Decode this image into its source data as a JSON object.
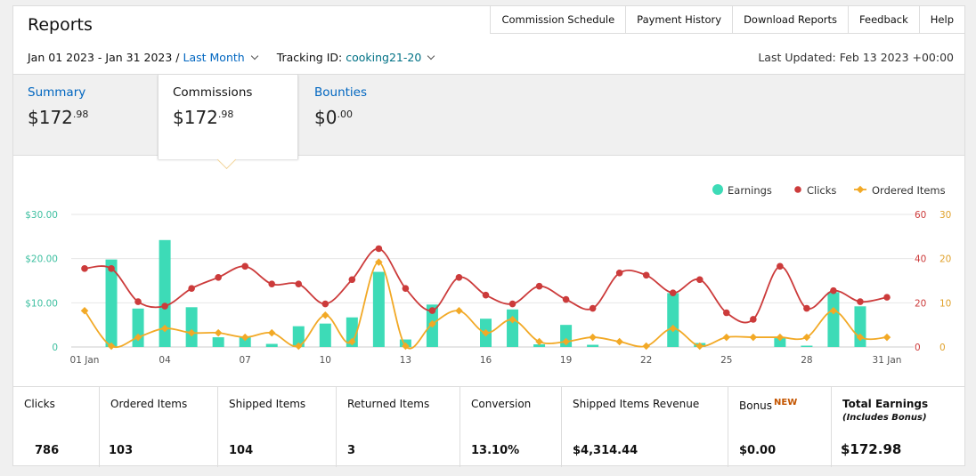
{
  "header": {
    "title": "Reports",
    "links": [
      "Commission Schedule",
      "Payment History",
      "Download Reports",
      "Feedback",
      "Help"
    ],
    "date_range": "Jan 01 2023 - Jan 31 2023 /",
    "date_preset": "Last Month",
    "tracking_label": "Tracking ID:",
    "tracking_id": "cooking21-20",
    "last_updated": "Last Updated: Feb 13 2023 +00:00"
  },
  "tabs": [
    {
      "name": "Summary",
      "amount_main": "$172",
      "amount_cents": ".98"
    },
    {
      "name": "Commissions",
      "amount_main": "$172",
      "amount_cents": ".98"
    },
    {
      "name": "Bounties",
      "amount_main": "$0",
      "amount_cents": ".00"
    }
  ],
  "chart_data": {
    "type": "bar+line",
    "x": [
      "01 Jan",
      "02",
      "03",
      "04",
      "05",
      "06",
      "07",
      "08",
      "09",
      "10",
      "11",
      "12",
      "13",
      "14",
      "15",
      "16",
      "17",
      "18",
      "19",
      "20",
      "21",
      "22",
      "23",
      "24",
      "25",
      "26",
      "27",
      "28",
      "29",
      "30",
      "31 Jan"
    ],
    "x_tick_labels": [
      "01 Jan",
      "04",
      "07",
      "10",
      "13",
      "16",
      "19",
      "22",
      "25",
      "28",
      "31 Jan"
    ],
    "series": [
      {
        "name": "Earnings",
        "type": "bar",
        "axis": "left",
        "color": "#3ddbb7",
        "values": [
          0,
          19.8,
          8.7,
          24.2,
          9,
          2.2,
          2.2,
          0.7,
          4.7,
          5.3,
          6.7,
          17,
          1.7,
          9.6,
          0,
          6.4,
          8.5,
          0.6,
          5,
          0.5,
          0,
          0,
          12.2,
          0.9,
          0,
          0,
          2,
          0.3,
          12.4,
          9.2,
          0
        ]
      },
      {
        "name": "Clicks",
        "type": "line",
        "axis": "right1",
        "color": "#cc3b3b",
        "values": [
          35.5,
          35.5,
          20.5,
          18.5,
          26.5,
          31.5,
          36.5,
          28.5,
          28.5,
          19.5,
          30.5,
          44.5,
          26.5,
          16.5,
          31.5,
          23.5,
          19.5,
          27.5,
          21.5,
          17.5,
          33.5,
          32.5,
          24.5,
          30.5,
          15.5,
          12.5,
          36.5,
          17.5,
          25.5,
          20.5,
          22.5
        ]
      },
      {
        "name": "Ordered Items",
        "type": "line",
        "axis": "right2",
        "color": "#f2a926",
        "values": [
          8.2,
          0.2,
          2.2,
          4.2,
          3.2,
          3.2,
          2.2,
          3.2,
          0.2,
          7.2,
          1.2,
          19.2,
          0.2,
          5.2,
          8.2,
          3.2,
          6.2,
          1.2,
          1.2,
          2.2,
          1.2,
          0.2,
          4.2,
          0.2,
          2.2,
          2.2,
          2.2,
          2.2,
          8.2,
          2.2,
          2.2
        ]
      }
    ],
    "left_axis": {
      "ticks": [
        "0",
        "$10.00",
        "$20.00",
        "$30.00"
      ],
      "ylim": [
        0,
        30
      ]
    },
    "right_axis_1": {
      "ticks": [
        "0",
        "20",
        "40",
        "60"
      ],
      "ylim": [
        0,
        60
      ]
    },
    "right_axis_2": {
      "ticks": [
        "0",
        "10",
        "20",
        "30"
      ],
      "ylim": [
        0,
        30
      ]
    },
    "legend": {
      "placement": "top-right",
      "items": [
        "Earnings",
        "Clicks",
        "Ordered Items"
      ]
    },
    "grid": true
  },
  "stats": [
    {
      "label": "Clicks",
      "value": "786"
    },
    {
      "label": "Ordered Items",
      "value": "103"
    },
    {
      "label": "Shipped Items",
      "value": "104"
    },
    {
      "label": "Returned Items",
      "value": "3"
    },
    {
      "label": "Conversion",
      "value": "13.10%"
    },
    {
      "label": "Shipped Items Revenue",
      "value": "$4,314.44"
    },
    {
      "label": "Bonus",
      "value": "$0.00",
      "badge": "NEW"
    },
    {
      "label": "Total Earnings",
      "sub": "(Includes Bonus)",
      "value": "$172.98"
    }
  ]
}
